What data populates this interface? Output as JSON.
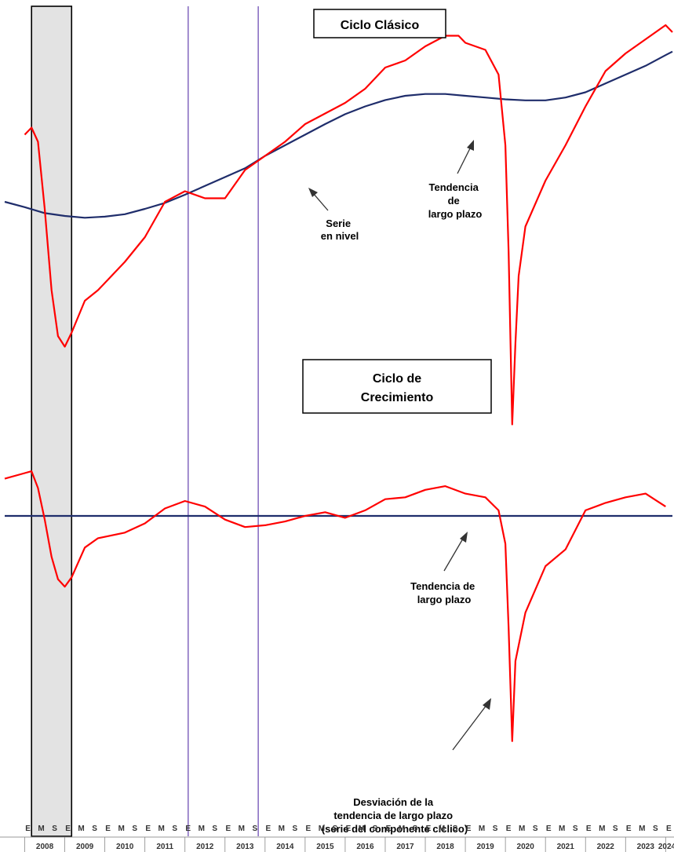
{
  "chart_data": [
    {
      "type": "line",
      "title": "Ciclo Clásico",
      "x_units": "year (decimal)",
      "series": [
        {
          "name": "Serie en nivel",
          "color": "#ff0000",
          "points": [
            [
              2008.0,
              0.43
            ],
            [
              2008.17,
              0.45
            ],
            [
              2008.33,
              0.41
            ],
            [
              2008.5,
              0.22
            ],
            [
              2008.67,
              -0.01
            ],
            [
              2008.83,
              -0.14
            ],
            [
              2009.0,
              -0.17
            ],
            [
              2009.17,
              -0.13
            ],
            [
              2009.5,
              -0.04
            ],
            [
              2009.83,
              -0.01
            ],
            [
              2010.5,
              0.07
            ],
            [
              2011.0,
              0.14
            ],
            [
              2011.5,
              0.24
            ],
            [
              2012.0,
              0.27
            ],
            [
              2012.5,
              0.25
            ],
            [
              2013.0,
              0.25
            ],
            [
              2013.5,
              0.33
            ],
            [
              2014.0,
              0.37
            ],
            [
              2014.5,
              0.41
            ],
            [
              2015.0,
              0.46
            ],
            [
              2015.5,
              0.49
            ],
            [
              2016.0,
              0.52
            ],
            [
              2016.5,
              0.56
            ],
            [
              2017.0,
              0.62
            ],
            [
              2017.5,
              0.64
            ],
            [
              2018.0,
              0.68
            ],
            [
              2018.5,
              0.71
            ],
            [
              2018.83,
              0.71
            ],
            [
              2019.0,
              0.69
            ],
            [
              2019.5,
              0.67
            ],
            [
              2019.83,
              0.6
            ],
            [
              2020.0,
              0.4
            ],
            [
              2020.08,
              0.1
            ],
            [
              2020.17,
              -0.39
            ],
            [
              2020.25,
              -0.16
            ],
            [
              2020.33,
              0.03
            ],
            [
              2020.5,
              0.17
            ],
            [
              2021.0,
              0.3
            ],
            [
              2021.5,
              0.4
            ],
            [
              2022.0,
              0.51
            ],
            [
              2022.5,
              0.61
            ],
            [
              2023.0,
              0.66
            ],
            [
              2023.5,
              0.7
            ],
            [
              2024.0,
              0.74
            ],
            [
              2024.17,
              0.72
            ]
          ]
        },
        {
          "name": "Tendencia de largo plazo",
          "color": "#1f2d6b",
          "points": [
            [
              2007.5,
              0.24
            ],
            [
              2008.0,
              0.225
            ],
            [
              2008.5,
              0.208
            ],
            [
              2009.0,
              0.2
            ],
            [
              2009.5,
              0.195
            ],
            [
              2010.0,
              0.198
            ],
            [
              2010.5,
              0.205
            ],
            [
              2011.0,
              0.22
            ],
            [
              2011.5,
              0.237
            ],
            [
              2012.0,
              0.26
            ],
            [
              2012.5,
              0.285
            ],
            [
              2013.0,
              0.31
            ],
            [
              2013.5,
              0.335
            ],
            [
              2014.0,
              0.37
            ],
            [
              2014.5,
              0.4
            ],
            [
              2015.0,
              0.43
            ],
            [
              2015.5,
              0.46
            ],
            [
              2016.0,
              0.488
            ],
            [
              2016.5,
              0.51
            ],
            [
              2017.0,
              0.528
            ],
            [
              2017.5,
              0.54
            ],
            [
              2018.0,
              0.545
            ],
            [
              2018.5,
              0.545
            ],
            [
              2019.0,
              0.54
            ],
            [
              2019.5,
              0.535
            ],
            [
              2020.0,
              0.53
            ],
            [
              2020.5,
              0.527
            ],
            [
              2021.0,
              0.527
            ],
            [
              2021.5,
              0.535
            ],
            [
              2022.0,
              0.55
            ],
            [
              2022.5,
              0.575
            ],
            [
              2023.0,
              0.6
            ],
            [
              2023.5,
              0.625
            ],
            [
              2024.0,
              0.655
            ],
            [
              2024.17,
              0.665
            ]
          ]
        }
      ],
      "annotations": [
        {
          "lines": [
            "Serie",
            "en nivel"
          ]
        },
        {
          "lines": [
            "Tendencia",
            "de",
            "largo plazo"
          ]
        }
      ]
    },
    {
      "type": "line",
      "title": "Ciclo de Crecimiento",
      "x_units": "year (decimal)",
      "series": [
        {
          "name": "Desviación de la tendencia de largo plazo (serie del componente cíclico)",
          "color": "#ff0000",
          "points": [
            [
              2007.5,
              0.2
            ],
            [
              2008.0,
              0.23
            ],
            [
              2008.17,
              0.24
            ],
            [
              2008.33,
              0.15
            ],
            [
              2008.5,
              -0.02
            ],
            [
              2008.67,
              -0.22
            ],
            [
              2008.83,
              -0.34
            ],
            [
              2009.0,
              -0.38
            ],
            [
              2009.17,
              -0.33
            ],
            [
              2009.5,
              -0.17
            ],
            [
              2009.83,
              -0.12
            ],
            [
              2010.5,
              -0.09
            ],
            [
              2011.0,
              -0.04
            ],
            [
              2011.5,
              0.04
            ],
            [
              2012.0,
              0.08
            ],
            [
              2012.5,
              0.05
            ],
            [
              2013.0,
              -0.02
            ],
            [
              2013.5,
              -0.06
            ],
            [
              2014.0,
              -0.05
            ],
            [
              2014.5,
              -0.03
            ],
            [
              2015.0,
              0.0
            ],
            [
              2015.5,
              0.02
            ],
            [
              2016.0,
              -0.01
            ],
            [
              2016.5,
              0.03
            ],
            [
              2017.0,
              0.09
            ],
            [
              2017.5,
              0.1
            ],
            [
              2018.0,
              0.14
            ],
            [
              2018.5,
              0.16
            ],
            [
              2019.0,
              0.12
            ],
            [
              2019.5,
              0.1
            ],
            [
              2019.83,
              0.03
            ],
            [
              2020.0,
              -0.15
            ],
            [
              2020.08,
              -0.6
            ],
            [
              2020.17,
              -1.21
            ],
            [
              2020.25,
              -0.78
            ],
            [
              2020.5,
              -0.52
            ],
            [
              2021.0,
              -0.27
            ],
            [
              2021.5,
              -0.18
            ],
            [
              2022.0,
              0.03
            ],
            [
              2022.5,
              0.07
            ],
            [
              2023.0,
              0.1
            ],
            [
              2023.5,
              0.12
            ],
            [
              2024.0,
              0.05
            ]
          ]
        },
        {
          "name": "Tendencia de largo plazo",
          "color": "#1f2d6b",
          "points": [
            [
              2007.5,
              0.0
            ],
            [
              2024.17,
              0.0
            ]
          ]
        }
      ],
      "annotations": [
        {
          "lines": [
            "Tendencia de",
            "largo plazo"
          ]
        },
        {
          "lines": [
            "Desviación de la",
            "tendencia de largo plazo",
            "(serie del componente cíclico)"
          ]
        }
      ]
    }
  ],
  "shared": {
    "recession_shading": [
      {
        "start": 2008.17,
        "end": 2009.17,
        "color": "#e3e3e3"
      }
    ],
    "vertical_markers": [
      {
        "x": 2012.08,
        "color": "#8a6fc2"
      },
      {
        "x": 2013.83,
        "color": "#8a6fc2"
      }
    ],
    "x_axis": {
      "start_year": 2007.5,
      "end_year": 2024.17,
      "month_letters": [
        "E",
        "M",
        "S"
      ],
      "year_labels": [
        "2008",
        "2009",
        "2010",
        "2011",
        "2012",
        "2013",
        "2014",
        "2015",
        "2016",
        "2017",
        "2018",
        "2019",
        "2020",
        "2021",
        "2022",
        "2023",
        "2024"
      ]
    }
  }
}
